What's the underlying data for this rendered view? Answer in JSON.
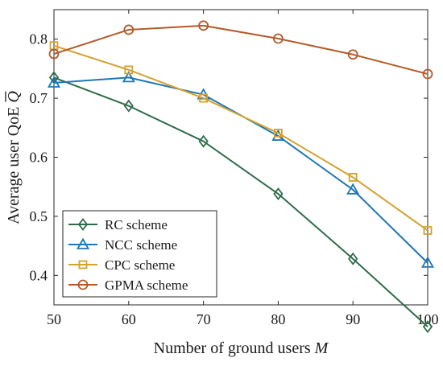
{
  "chart_data": {
    "type": "line",
    "xlabel": "Number of ground users ",
    "xlabel_symbol": "M",
    "ylabel": "Average user QoE ",
    "ylabel_symbol": "Q",
    "xlim": [
      50,
      100
    ],
    "ylim": [
      0.35,
      0.85
    ],
    "xticks": [
      50,
      60,
      70,
      80,
      90,
      100
    ],
    "yticks": [
      0.4,
      0.5,
      0.6,
      0.7,
      0.8
    ],
    "ytick_labels": [
      "0.4",
      "0.5",
      "0.6",
      "0.7",
      "0.8"
    ],
    "grid": false,
    "legend_position": "bottom-left",
    "x": [
      50,
      60,
      70,
      80,
      90,
      100
    ],
    "series": [
      {
        "name": "RC scheme",
        "color": "#2e6b4b",
        "marker": "diamond",
        "values": [
          0.735,
          0.687,
          0.627,
          0.538,
          0.428,
          0.313
        ]
      },
      {
        "name": "NCC scheme",
        "color": "#1f77b4",
        "marker": "triangle",
        "values": [
          0.726,
          0.735,
          0.706,
          0.636,
          0.545,
          0.421
        ]
      },
      {
        "name": "CPC scheme",
        "color": "#d4a22e",
        "marker": "square",
        "values": [
          0.789,
          0.748,
          0.7,
          0.641,
          0.566,
          0.476
        ]
      },
      {
        "name": "GPMA scheme",
        "color": "#b35a2a",
        "marker": "circle",
        "values": [
          0.775,
          0.816,
          0.823,
          0.801,
          0.774,
          0.741
        ]
      }
    ]
  }
}
